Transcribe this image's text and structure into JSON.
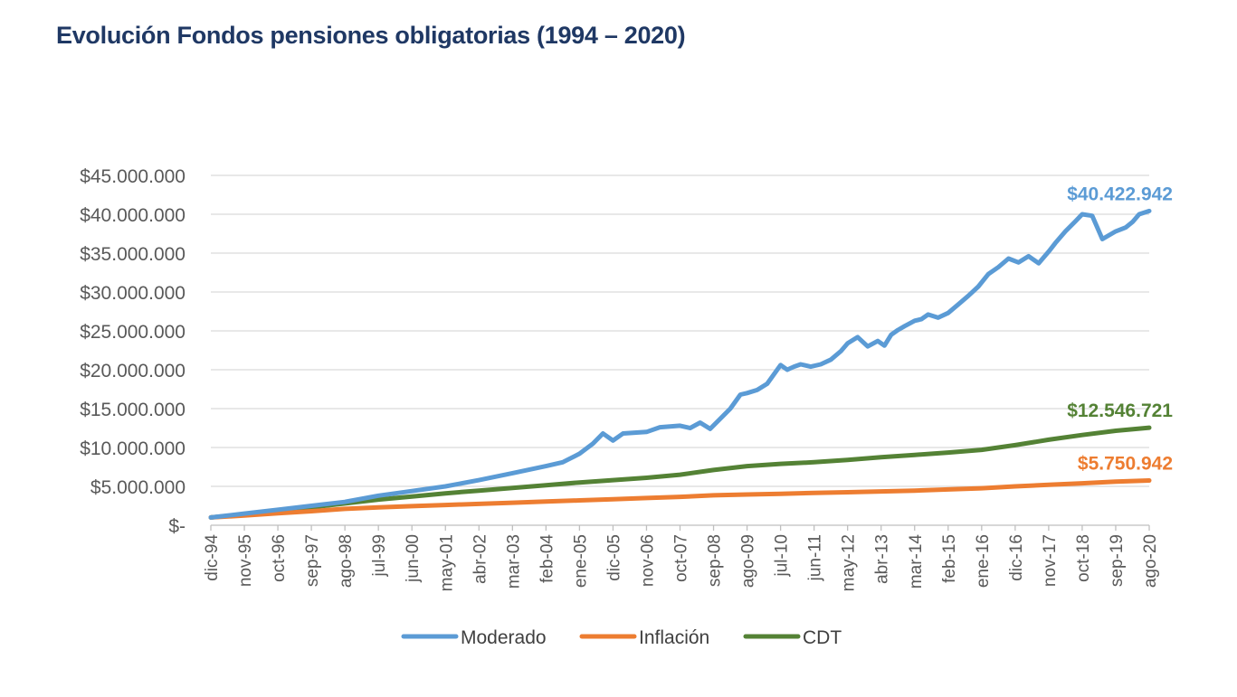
{
  "title": "Evolución Fondos pensiones obligatorias (1994 – 2020)",
  "chart_data": {
    "type": "line",
    "title": "Evolución Fondos pensiones obligatorias (1994 – 2020)",
    "xlabel": "",
    "ylabel": "",
    "ylim": [
      0,
      45000000
    ],
    "grid": true,
    "legend_position": "bottom",
    "y_ticks": [
      {
        "value": 0,
        "label": "$-"
      },
      {
        "value": 5000000,
        "label": "$5.000.000"
      },
      {
        "value": 10000000,
        "label": "$10.000.000"
      },
      {
        "value": 15000000,
        "label": "$15.000.000"
      },
      {
        "value": 20000000,
        "label": "$20.000.000"
      },
      {
        "value": 25000000,
        "label": "$25.000.000"
      },
      {
        "value": 30000000,
        "label": "$30.000.000"
      },
      {
        "value": 35000000,
        "label": "$35.000.000"
      },
      {
        "value": 40000000,
        "label": "$40.000.000"
      },
      {
        "value": 45000000,
        "label": "$45.000.000"
      }
    ],
    "categories": [
      "dic-94",
      "nov-95",
      "oct-96",
      "sep-97",
      "ago-98",
      "jul-99",
      "jun-00",
      "may-01",
      "abr-02",
      "mar-03",
      "feb-04",
      "ene-05",
      "dic-05",
      "nov-06",
      "oct-07",
      "sep-08",
      "ago-09",
      "jul-10",
      "jun-11",
      "may-12",
      "abr-13",
      "mar-14",
      "feb-15",
      "ene-16",
      "dic-16",
      "nov-17",
      "oct-18",
      "sep-19",
      "ago-20"
    ],
    "series": [
      {
        "name": "Moderado",
        "color": "#5b9bd5",
        "end_label": "$40.422.942",
        "x": [
          0,
          1,
          2,
          3,
          4,
          5,
          6,
          7,
          8,
          9,
          10,
          10.5,
          11,
          11.4,
          11.7,
          12,
          12.3,
          12.6,
          13,
          13.4,
          14,
          14.3,
          14.6,
          14.9,
          15.2,
          15.5,
          15.8,
          16,
          16.3,
          16.6,
          17,
          17.2,
          17.4,
          17.6,
          17.9,
          18.2,
          18.5,
          18.8,
          19,
          19.3,
          19.6,
          19.9,
          20.1,
          20.3,
          20.5,
          20.7,
          21,
          21.2,
          21.4,
          21.7,
          22,
          22.3,
          22.6,
          22.9,
          23.2,
          23.5,
          23.8,
          24.1,
          24.4,
          24.7,
          25,
          25.2,
          25.5,
          25.8,
          26,
          26.3,
          26.6,
          27,
          27.3,
          27.5,
          27.7,
          28
        ],
        "values": [
          1000000,
          1500000,
          2000000,
          2500000,
          3000000,
          3800000,
          4400000,
          5000000,
          5800000,
          6700000,
          7600000,
          8100000,
          9200000,
          10500000,
          11800000,
          10900000,
          11800000,
          11900000,
          12000000,
          12600000,
          12800000,
          12500000,
          13200000,
          12400000,
          13700000,
          15000000,
          16800000,
          17000000,
          17400000,
          18200000,
          20600000,
          20000000,
          20400000,
          20700000,
          20400000,
          20700000,
          21300000,
          22400000,
          23400000,
          24200000,
          23000000,
          23700000,
          23100000,
          24500000,
          25100000,
          25600000,
          26300000,
          26500000,
          27100000,
          26700000,
          27300000,
          28400000,
          29500000,
          30700000,
          32300000,
          33200000,
          34300000,
          33800000,
          34600000,
          33700000,
          35200000,
          36300000,
          37800000,
          39100000,
          40000000,
          39800000,
          36800000,
          37800000,
          38300000,
          39000000,
          40000000,
          40422942
        ]
      },
      {
        "name": "Inflación",
        "color": "#ed7d31",
        "end_label": "$5.750.942",
        "x": [
          0,
          1,
          2,
          3,
          4,
          5,
          6,
          7,
          8,
          9,
          10,
          11,
          12,
          13,
          14,
          15,
          16,
          17,
          18,
          19,
          20,
          21,
          22,
          23,
          24,
          25,
          26,
          27,
          28
        ],
        "values": [
          1000000,
          1250000,
          1550000,
          1800000,
          2100000,
          2300000,
          2450000,
          2600000,
          2750000,
          2900000,
          3050000,
          3200000,
          3350000,
          3500000,
          3650000,
          3850000,
          3950000,
          4050000,
          4150000,
          4250000,
          4350000,
          4450000,
          4600000,
          4750000,
          5000000,
          5200000,
          5400000,
          5600000,
          5750942
        ]
      },
      {
        "name": "CDT",
        "color": "#548235",
        "end_label": "$12.546.721",
        "x": [
          0,
          1,
          2,
          3,
          4,
          5,
          6,
          7,
          8,
          9,
          10,
          11,
          12,
          13,
          14,
          15,
          16,
          17,
          18,
          19,
          20,
          21,
          22,
          23,
          24,
          25,
          26,
          27,
          28
        ],
        "values": [
          1000000,
          1400000,
          1850000,
          2300000,
          2800000,
          3300000,
          3700000,
          4100000,
          4450000,
          4800000,
          5150000,
          5500000,
          5800000,
          6100000,
          6500000,
          7100000,
          7600000,
          7900000,
          8100000,
          8400000,
          8750000,
          9050000,
          9350000,
          9700000,
          10300000,
          11000000,
          11600000,
          12150000,
          12546721
        ]
      }
    ]
  }
}
